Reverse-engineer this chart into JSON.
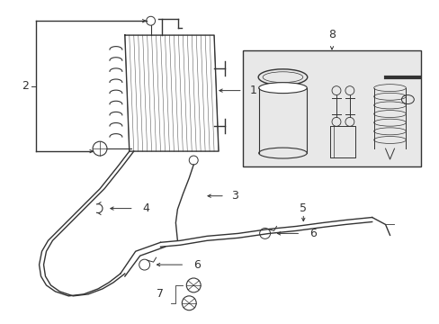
{
  "bg_color": "#ffffff",
  "line_color": "#333333",
  "inset_bg": "#e0e0e0",
  "fig_w": 4.89,
  "fig_h": 3.6,
  "dpi": 100,
  "lw": 1.0,
  "label_fs": 9
}
